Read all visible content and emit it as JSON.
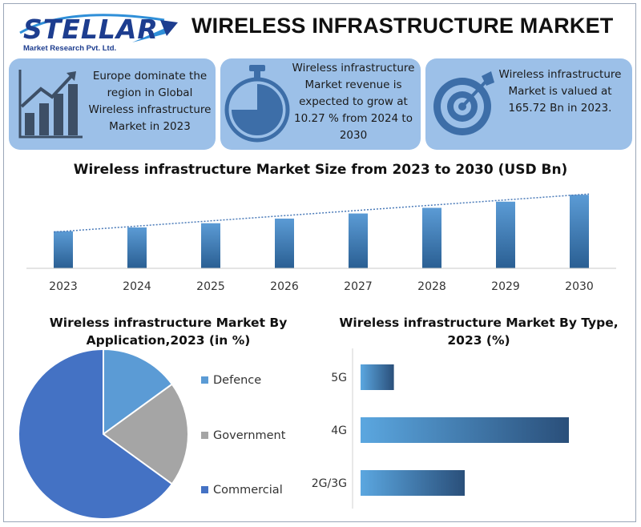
{
  "header": {
    "logo_text": "STELLAR",
    "logo_subtitle": "Market Research Pvt. Ltd.",
    "title": "WIRELESS INFRASTRUCTURE MARKET"
  },
  "cards": [
    {
      "text": "Europe dominate the region in Global Wireless infrastructure Market in 2023",
      "icon": "bar-growth-icon"
    },
    {
      "text": "Wireless infrastructure Market revenue is expected to grow at 10.27 % from 2024 to 2030",
      "icon": "stopwatch-icon"
    },
    {
      "text": "Wireless infrastructure Market is valued at 165.72 Bn in 2023.",
      "icon": "target-icon"
    }
  ],
  "colors": {
    "card_bg": "#9cc0e8",
    "bar_light": "#5b9bd5",
    "bar_dark": "#2a5f93",
    "defence": "#5b9bd5",
    "government": "#a5a5a5",
    "commercial": "#4472c4",
    "logo_blue": "#1d3d8f"
  },
  "chart_data": [
    {
      "type": "bar",
      "title": "Wireless infrastructure Market Size from 2023 to 2030 (USD Bn)",
      "categories": [
        "2023",
        "2024",
        "2025",
        "2026",
        "2027",
        "2028",
        "2029",
        "2030"
      ],
      "values": [
        165.72,
        182.7,
        201.5,
        222.2,
        245.0,
        270.2,
        297.9,
        328.5
      ],
      "trendline": true,
      "xlabel": "",
      "ylabel": "",
      "ylim": [
        0,
        340
      ],
      "grid": false
    },
    {
      "type": "pie",
      "title": "Wireless infrastructure Market By Application,2023 (in %)",
      "labels": [
        "Defence",
        "Government",
        "Commercial"
      ],
      "values": [
        15,
        20,
        65
      ],
      "legend": "right"
    },
    {
      "type": "bar",
      "orientation": "horizontal",
      "title": "Wireless infrastructure Market By Type, 2023 (%)",
      "categories": [
        "5G",
        "4G",
        "2G/3G"
      ],
      "values": [
        16,
        100,
        50
      ],
      "xlim": [
        0,
        100
      ],
      "grid": false
    }
  ]
}
